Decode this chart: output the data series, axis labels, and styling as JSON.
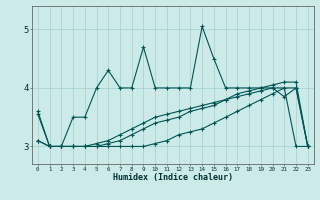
{
  "xlabel": "Humidex (Indice chaleur)",
  "bg_color": "#cceae8",
  "grid_color": "#aad4d2",
  "line_color": "#005555",
  "xlim": [
    -0.5,
    23.5
  ],
  "ylim": [
    2.7,
    5.4
  ],
  "yticks": [
    3,
    4,
    5
  ],
  "xtick_labels": [
    "0",
    "1",
    "2",
    "3",
    "4",
    "5",
    "6",
    "7",
    "8",
    "9",
    "10",
    "11",
    "12",
    "13",
    "14",
    "15",
    "16",
    "17",
    "18",
    "19",
    "20",
    "21",
    "22",
    "23"
  ],
  "series1_x": [
    0,
    1,
    2,
    3,
    4,
    5,
    6,
    7,
    8,
    9,
    10,
    11,
    12,
    13,
    14,
    15,
    16,
    17,
    18,
    19,
    20,
    21,
    22,
    23
  ],
  "series1_y": [
    3.6,
    3.0,
    3.0,
    3.5,
    3.5,
    4.0,
    4.3,
    4.0,
    4.0,
    4.7,
    4.0,
    4.0,
    4.0,
    4.0,
    5.05,
    4.5,
    4.0,
    4.0,
    4.0,
    4.0,
    4.0,
    3.85,
    4.0,
    3.0
  ],
  "series2_x": [
    0,
    1,
    2,
    3,
    4,
    5,
    6,
    7,
    8,
    9,
    10,
    11,
    12,
    13,
    14,
    15,
    16,
    17,
    18,
    19,
    20,
    21,
    22,
    23
  ],
  "series2_y": [
    3.1,
    3.0,
    3.0,
    3.0,
    3.0,
    3.0,
    3.0,
    3.0,
    3.0,
    3.0,
    3.05,
    3.1,
    3.2,
    3.25,
    3.3,
    3.4,
    3.5,
    3.6,
    3.7,
    3.8,
    3.9,
    4.0,
    4.0,
    3.0
  ],
  "series3_x": [
    0,
    1,
    2,
    3,
    4,
    5,
    6,
    7,
    8,
    9,
    10,
    11,
    12,
    13,
    14,
    15,
    16,
    17,
    18,
    19,
    20,
    21,
    22,
    23
  ],
  "series3_y": [
    3.55,
    3.0,
    3.0,
    3.0,
    3.0,
    3.05,
    3.1,
    3.2,
    3.3,
    3.4,
    3.5,
    3.55,
    3.6,
    3.65,
    3.7,
    3.75,
    3.8,
    3.9,
    3.95,
    4.0,
    4.05,
    4.1,
    4.1,
    3.0
  ],
  "series4_x": [
    0,
    1,
    2,
    3,
    4,
    5,
    6,
    7,
    8,
    9,
    10,
    11,
    12,
    13,
    14,
    15,
    16,
    17,
    18,
    19,
    20,
    21,
    22,
    23
  ],
  "series4_y": [
    3.1,
    3.0,
    3.0,
    3.0,
    3.0,
    3.0,
    3.05,
    3.1,
    3.2,
    3.3,
    3.4,
    3.45,
    3.5,
    3.6,
    3.65,
    3.7,
    3.8,
    3.85,
    3.9,
    3.95,
    4.0,
    4.0,
    3.0,
    3.0
  ]
}
